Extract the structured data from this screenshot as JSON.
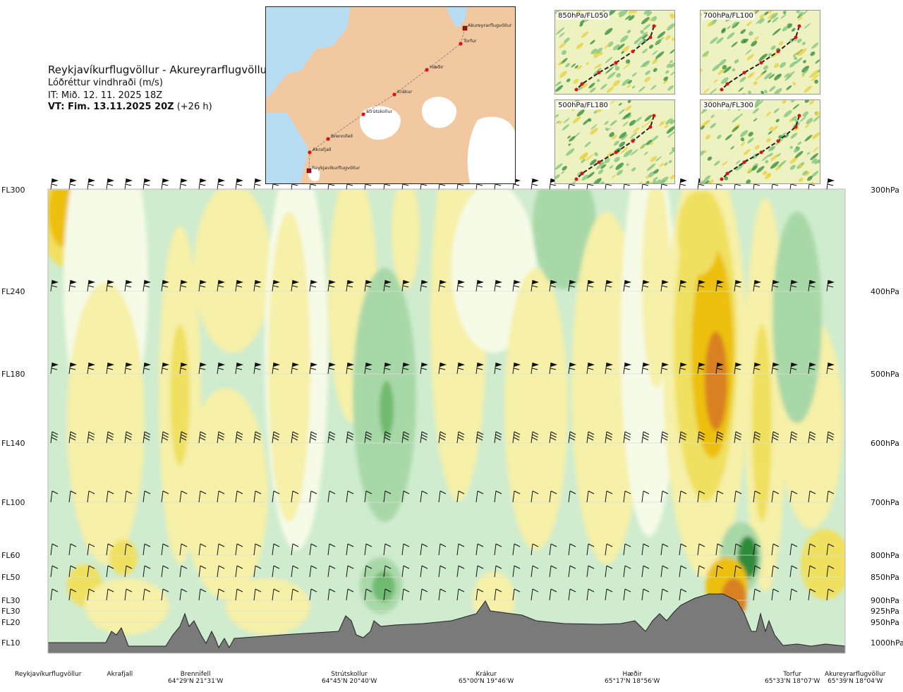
{
  "header": {
    "route": "Reykjavíkurflugvöllur - Akureyrarflugvöllur",
    "product": "Lóðréttur vindhraði (m/s)",
    "it": "IT: Mið. 12. 11. 2025 18Z",
    "vt_bold": "VT: Fim. 13.11.2025 20Z",
    "vt_rest": " (+26 h)"
  },
  "route_map": {
    "stations": [
      "Akureyrarflugvöllur",
      "Torfur",
      "Hæðir",
      "Krákur",
      "Strútskollur",
      "Brennifell",
      "Akrafjall",
      "Reykjavíkurflugvöllur"
    ],
    "colors": {
      "sea": "#b8dcf2",
      "land": "#f2c8a0",
      "ice": "#ffffff",
      "route": "#d01010"
    }
  },
  "mini_maps": [
    {
      "label": "850hPa/FL050"
    },
    {
      "label": "700hPa/FL100"
    },
    {
      "label": "500hPa/FL180"
    },
    {
      "label": "300hPa/FL300"
    }
  ],
  "chart_data": {
    "type": "heatmap",
    "title": "Lóðréttur vindhraði (m/s)",
    "levels": [
      {
        "fl": "FL300",
        "hpa": "300hPa",
        "p": 300
      },
      {
        "fl": "FL240",
        "hpa": "400hPa",
        "p": 400
      },
      {
        "fl": "FL180",
        "hpa": "500hPa",
        "p": 500
      },
      {
        "fl": "FL140",
        "hpa": "600hPa",
        "p": 600
      },
      {
        "fl": "FL100",
        "hpa": "700hPa",
        "p": 700
      },
      {
        "fl": "FL60",
        "hpa": "800hPa",
        "p": 800
      },
      {
        "fl": "FL50",
        "hpa": "850hPa",
        "p": 850
      },
      {
        "fl": "FL30",
        "hpa": "900hPa",
        "p": 900
      },
      {
        "fl": "FL30",
        "hpa": "925hPa",
        "p": 925
      },
      {
        "fl": "FL20",
        "hpa": "950hPa",
        "p": 950
      },
      {
        "fl": "FL10",
        "hpa": "1000hPa",
        "p": 1000
      }
    ],
    "ylim": [
      300,
      1000
    ],
    "locations": [
      {
        "name": "Reykjavíkurflugvöllur",
        "coord": ""
      },
      {
        "name": "Akrafjall",
        "coord": ""
      },
      {
        "name": "Brennifell",
        "coord": "64°29'N 21°31'W"
      },
      {
        "name": "Strútskollur",
        "coord": "64°45'N 20°40'W"
      },
      {
        "name": "Krákur",
        "coord": "65°00'N 19°46'W"
      },
      {
        "name": "Hæðir",
        "coord": "65°17'N 18°56'W"
      },
      {
        "name": "Torfur",
        "coord": "65°33'N 18°07'W"
      },
      {
        "name": "Akureyrarflugvöllur",
        "coord": "65°39'N 18°04'W"
      }
    ],
    "color_scale": {
      "strong_up": "#2e8b3a",
      "mod_up": "#6fba6f",
      "weak_up": "#a8d8a8",
      "slight_up": "#cfeccf",
      "neutral": "#f6fbe8",
      "slight_down": "#f6f0a8",
      "weak_down": "#f0e060",
      "mod_down": "#ecc010",
      "strong_down": "#d98020"
    },
    "terrain_color": "#7a7a7a",
    "grid": true
  }
}
